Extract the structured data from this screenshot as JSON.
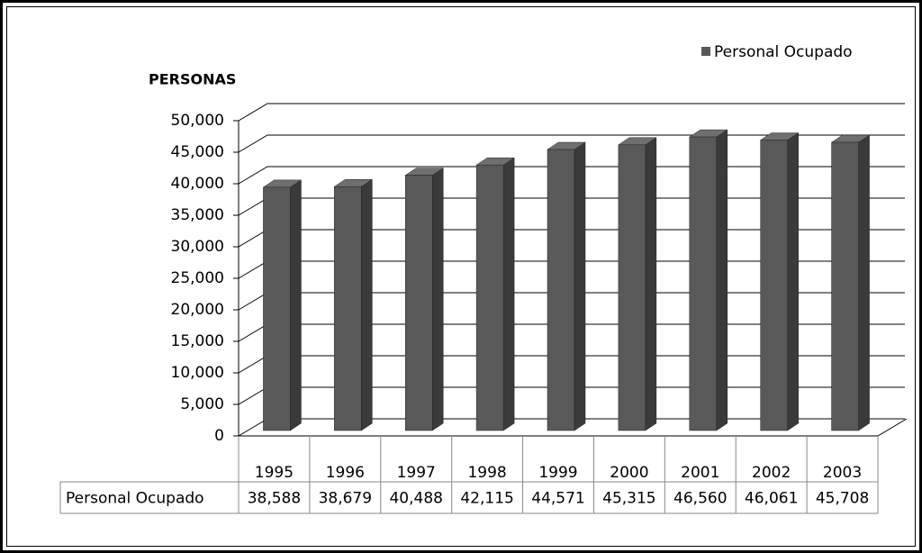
{
  "chart_data": {
    "type": "bar3d",
    "y_label": "PERSONAS",
    "categories": [
      "1995",
      "1996",
      "1997",
      "1998",
      "1999",
      "2000",
      "2001",
      "2002",
      "2003"
    ],
    "series": [
      {
        "name": "Personal Ocupado",
        "color": "#595959",
        "values": [
          38588,
          38679,
          40488,
          42115,
          44571,
          45315,
          46560,
          46061,
          45708
        ],
        "value_labels": [
          "38,588",
          "38,679",
          "40,488",
          "42,115",
          "44,571",
          "45,315",
          "46,560",
          "46,061",
          "45,708"
        ]
      }
    ],
    "ylim": [
      0,
      50000
    ],
    "yticks": [
      0,
      {
        "value": 5000,
        "label": "5,000"
      },
      {
        "value": 10000,
        "label": "10,000"
      },
      {
        "value": 15000,
        "label": "15,000"
      },
      {
        "value": 20000,
        "label": "20,000"
      },
      {
        "value": 25000,
        "label": "25,000"
      },
      {
        "value": 30000,
        "label": "30,000"
      },
      {
        "value": 35000,
        "label": "35,000"
      },
      {
        "value": 40000,
        "label": "40,000"
      },
      {
        "value": 45000,
        "label": "45,000"
      },
      {
        "value": 50000,
        "label": "50,000"
      }
    ],
    "grid": true,
    "legend": "top-right",
    "data_table": true
  }
}
